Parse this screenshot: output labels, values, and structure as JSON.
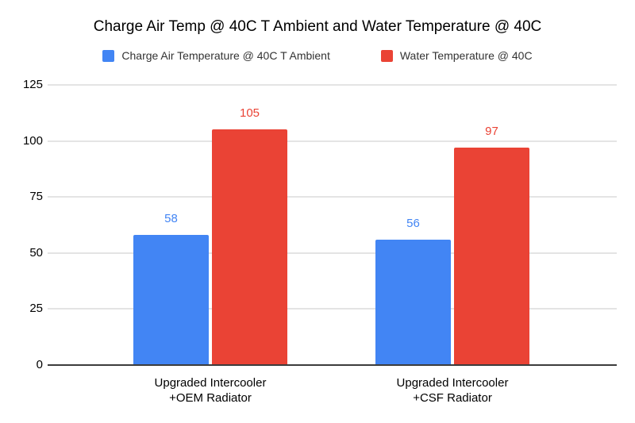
{
  "title": "Charge Air Temp @ 40C T Ambient and Water Temperature @ 40C",
  "colors": {
    "series_blue": "#4285F4",
    "series_red": "#EA4335",
    "gridline": "#E4E4E4",
    "axis_baseline": "#3C3C3C",
    "text": "#000000"
  },
  "chart_data": {
    "type": "bar",
    "title": "Charge Air Temp @ 40C T Ambient and Water Temperature @ 40C",
    "categories": [
      "Upgraded Intercooler +OEM Radiator",
      "Upgraded Intercooler +CSF Radiator"
    ],
    "category_lines": [
      [
        "Upgraded Intercooler",
        "+OEM Radiator"
      ],
      [
        "Upgraded Intercooler",
        "+CSF Radiator"
      ]
    ],
    "series": [
      {
        "name": "Charge Air Temperature @ 40C T Ambient",
        "color": "#4285F4",
        "values": [
          58,
          56
        ]
      },
      {
        "name": "Water Temperature @ 40C",
        "color": "#EA4335",
        "values": [
          105,
          97
        ]
      }
    ],
    "data_labels": [
      [
        58,
        56
      ],
      [
        105,
        97
      ]
    ],
    "yticks": [
      0,
      25,
      50,
      75,
      100,
      125
    ],
    "ylim": [
      0,
      125
    ],
    "xlabel": "",
    "ylabel": "",
    "grid": true,
    "legend_position": "top",
    "background": "#FFFFFF"
  }
}
